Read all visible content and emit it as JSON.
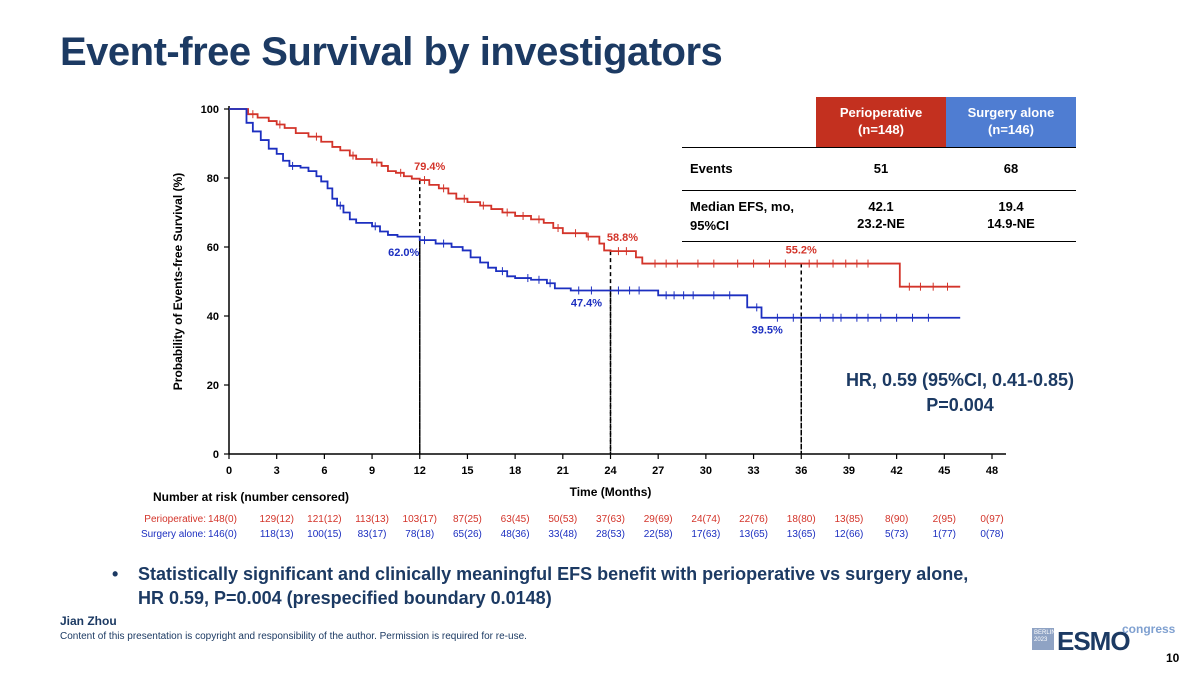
{
  "slide": {
    "title": "Event-free Survival by investigators",
    "bullet_marker": "•",
    "bullet_line1": "Statistically significant and clinically meaningful EFS benefit with perioperative vs surgery alone,",
    "bullet_line2": "HR 0.59, P=0.004 (prespecified boundary 0.0148)",
    "author": "Jian Zhou",
    "copyright": "Content of this presentation is copyright and responsibility of the author. Permission is required for re-use.",
    "page_number": "10",
    "logo": {
      "box_line1": "BERLIN",
      "box_line2": "2023",
      "brand": "ESMO",
      "sub": "congress"
    }
  },
  "table": {
    "headers": [
      "",
      "Perioperative\n(n=148)",
      "Surgery alone\n(n=146)"
    ],
    "header_colors": [
      "",
      "#c3301f",
      "#4f7dd2"
    ],
    "rows": [
      {
        "label": "Events",
        "peri": "51",
        "surg": "68"
      },
      {
        "label": "Median EFS, mo,\n95%CI",
        "peri": "42.1\n23.2-NE",
        "surg": "19.4\n14.9-NE"
      }
    ]
  },
  "hr_text": {
    "line1": "HR, 0.59 (95%CI, 0.41-0.85)",
    "line2": "P=0.004"
  },
  "chart_data": {
    "type": "line",
    "subtype": "kaplan-meier",
    "title": "",
    "xlabel": "Time (Months)",
    "ylabel": "Probability of Events-free Survival (%)",
    "xlim": [
      0,
      48
    ],
    "ylim": [
      0,
      100
    ],
    "xticks": [
      0,
      3,
      6,
      9,
      12,
      15,
      18,
      21,
      24,
      27,
      30,
      33,
      36,
      39,
      42,
      45,
      48
    ],
    "yticks": [
      0,
      20,
      40,
      60,
      80,
      100
    ],
    "reference_lines_x": [
      12,
      24,
      36
    ],
    "series": [
      {
        "name": "Perioperative",
        "color": "#d3342a",
        "steps": [
          [
            0,
            100
          ],
          [
            1,
            100
          ],
          [
            1.2,
            98.5
          ],
          [
            1.8,
            97.5
          ],
          [
            2.5,
            96.5
          ],
          [
            3,
            95.5
          ],
          [
            3.5,
            94.5
          ],
          [
            4.2,
            93
          ],
          [
            5,
            92
          ],
          [
            5.8,
            90.5
          ],
          [
            6.5,
            89
          ],
          [
            7,
            88
          ],
          [
            7.6,
            86.5
          ],
          [
            8,
            85.5
          ],
          [
            9,
            84.5
          ],
          [
            9.6,
            83.5
          ],
          [
            10,
            82
          ],
          [
            10.5,
            81.5
          ],
          [
            11,
            80.5
          ],
          [
            11.5,
            79.8
          ],
          [
            12,
            79.4
          ],
          [
            12.6,
            78
          ],
          [
            13.2,
            77
          ],
          [
            13.8,
            75.5
          ],
          [
            14.3,
            74
          ],
          [
            15,
            73
          ],
          [
            15.8,
            72
          ],
          [
            16.5,
            71
          ],
          [
            17.2,
            70
          ],
          [
            18,
            69
          ],
          [
            19,
            68
          ],
          [
            19.8,
            67
          ],
          [
            20.4,
            65.5
          ],
          [
            21,
            64
          ],
          [
            22.5,
            63
          ],
          [
            23.3,
            61
          ],
          [
            23.6,
            59
          ],
          [
            24,
            58.8
          ],
          [
            25.2,
            58.8
          ],
          [
            25.6,
            57
          ],
          [
            26,
            55.2
          ],
          [
            42.1,
            55.2
          ],
          [
            42.2,
            48.5
          ],
          [
            46,
            48.5
          ]
        ],
        "censors": [
          1.5,
          3.2,
          5.5,
          7.8,
          9.3,
          10.8,
          12.3,
          13.5,
          14.8,
          16,
          17.5,
          18.5,
          19.5,
          20.7,
          21.8,
          22.6,
          24.5,
          25,
          26.8,
          27.5,
          28.2,
          29.5,
          30.5,
          32,
          33,
          34,
          35,
          36.5,
          37,
          38,
          38.8,
          39.5,
          40.2,
          42.8,
          43.5,
          44.3,
          45.2
        ],
        "annotations": [
          {
            "x": 12,
            "y": 79.4,
            "text": "79.4%"
          },
          {
            "x": 24,
            "y": 58.8,
            "text": "58.8%"
          },
          {
            "x": 36,
            "y": 55.2,
            "text": "55.2%"
          }
        ]
      },
      {
        "name": "Surgery alone",
        "color": "#1c2fc0",
        "steps": [
          [
            0,
            100
          ],
          [
            1,
            100
          ],
          [
            1.1,
            96
          ],
          [
            1.5,
            93.5
          ],
          [
            2,
            91
          ],
          [
            2.5,
            88.5
          ],
          [
            3,
            87
          ],
          [
            3.4,
            85
          ],
          [
            3.8,
            83.5
          ],
          [
            4.5,
            83
          ],
          [
            5,
            82
          ],
          [
            5.5,
            80.5
          ],
          [
            5.8,
            79
          ],
          [
            6.2,
            77
          ],
          [
            6.5,
            74
          ],
          [
            6.8,
            72
          ],
          [
            7.2,
            70
          ],
          [
            7.6,
            68
          ],
          [
            8,
            67
          ],
          [
            9,
            66
          ],
          [
            9.5,
            64.5
          ],
          [
            10,
            63.5
          ],
          [
            10.6,
            63
          ],
          [
            12,
            62
          ],
          [
            13,
            61
          ],
          [
            14,
            60
          ],
          [
            14.7,
            59
          ],
          [
            15.2,
            57
          ],
          [
            15.8,
            55.5
          ],
          [
            16.3,
            54
          ],
          [
            16.8,
            53
          ],
          [
            17.5,
            51.5
          ],
          [
            18,
            51
          ],
          [
            19,
            50.5
          ],
          [
            20,
            49.5
          ],
          [
            20.5,
            48
          ],
          [
            21.5,
            47.4
          ],
          [
            27,
            47.4
          ],
          [
            27,
            46
          ],
          [
            32.5,
            46
          ],
          [
            32.6,
            42.5
          ],
          [
            33.5,
            42.5
          ],
          [
            33.5,
            39.5
          ],
          [
            46,
            39.5
          ]
        ],
        "censors": [
          4,
          7,
          9.2,
          12.3,
          13.5,
          17.2,
          18.8,
          19.5,
          20.2,
          22,
          22.8,
          24.5,
          25.2,
          25.8,
          27.5,
          28,
          28.6,
          29.2,
          30.5,
          31.5,
          33.2,
          34.5,
          35.5,
          37.2,
          38,
          38.5,
          39.5,
          40.2,
          41,
          42,
          43,
          44
        ],
        "annotations": [
          {
            "x": 12,
            "y": 62.0,
            "text": "62.0%"
          },
          {
            "x": 24,
            "y": 47.4,
            "text": "47.4%"
          },
          {
            "x": 36,
            "y": 39.5,
            "text": "39.5%"
          }
        ]
      }
    ],
    "risk_table": {
      "title": "Number at risk (number censored)",
      "rows": [
        {
          "label": "Perioperative:",
          "color": "#d3342a",
          "values": [
            "148(0)",
            "129(12)",
            "121(12)",
            "113(13)",
            "103(17)",
            "87(25)",
            "63(45)",
            "50(53)",
            "37(63)",
            "29(69)",
            "24(74)",
            "22(76)",
            "18(80)",
            "13(85)",
            "8(90)",
            "2(95)",
            "0(97)"
          ]
        },
        {
          "label": "Surgery alone:",
          "color": "#1c2fc0",
          "values": [
            "146(0)",
            "118(13)",
            "100(15)",
            "83(17)",
            "78(18)",
            "65(26)",
            "48(36)",
            "33(48)",
            "28(53)",
            "22(58)",
            "17(63)",
            "13(65)",
            "13(65)",
            "12(66)",
            "5(73)",
            "1(77)",
            "0(78)"
          ]
        }
      ]
    }
  }
}
